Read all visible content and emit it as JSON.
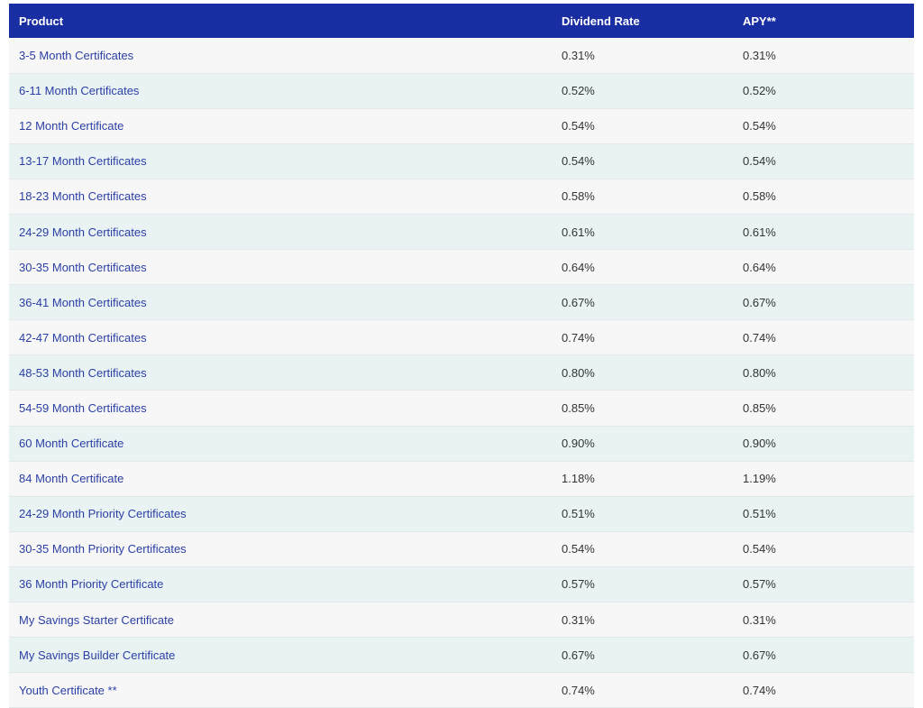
{
  "table": {
    "headers": {
      "product": "Product",
      "dividend_rate": "Dividend Rate",
      "apy": "APY**"
    },
    "rows": [
      {
        "product": "3-5 Month Certificates",
        "rate": "0.31%",
        "apy": "0.31%"
      },
      {
        "product": "6-11 Month Certificates",
        "rate": "0.52%",
        "apy": "0.52%"
      },
      {
        "product": "12 Month Certificate",
        "rate": "0.54%",
        "apy": "0.54%"
      },
      {
        "product": "13-17 Month Certificates",
        "rate": "0.54%",
        "apy": "0.54%"
      },
      {
        "product": "18-23 Month Certificates",
        "rate": "0.58%",
        "apy": "0.58%"
      },
      {
        "product": "24-29 Month Certificates",
        "rate": "0.61%",
        "apy": "0.61%"
      },
      {
        "product": "30-35 Month Certificates",
        "rate": "0.64%",
        "apy": "0.64%"
      },
      {
        "product": "36-41 Month Certificates",
        "rate": "0.67%",
        "apy": "0.67%"
      },
      {
        "product": "42-47 Month Certificates",
        "rate": "0.74%",
        "apy": "0.74%"
      },
      {
        "product": "48-53 Month Certificates",
        "rate": "0.80%",
        "apy": "0.80%"
      },
      {
        "product": "54-59 Month Certificates",
        "rate": "0.85%",
        "apy": "0.85%"
      },
      {
        "product": "60 Month Certificate",
        "rate": "0.90%",
        "apy": "0.90%"
      },
      {
        "product": "84 Month Certificate",
        "rate": "1.18%",
        "apy": "1.19%"
      },
      {
        "product": "24-29 Month Priority Certificates",
        "rate": "0.51%",
        "apy": "0.51%"
      },
      {
        "product": "30-35 Month Priority Certificates",
        "rate": "0.54%",
        "apy": "0.54%"
      },
      {
        "product": "36 Month Priority Certificate",
        "rate": "0.57%",
        "apy": "0.57%"
      },
      {
        "product": "My Savings Starter Certificate",
        "rate": "0.31%",
        "apy": "0.31%"
      },
      {
        "product": "My Savings Builder Certificate",
        "rate": "0.67%",
        "apy": "0.67%"
      },
      {
        "product": "Youth Certificate **",
        "rate": "0.74%",
        "apy": "0.74%"
      }
    ]
  },
  "colors": {
    "header_bg": "#1a2ea3",
    "link": "#2b3fa5",
    "row_alt": "#e9f3f3",
    "row_base": "#f7f7f7"
  }
}
